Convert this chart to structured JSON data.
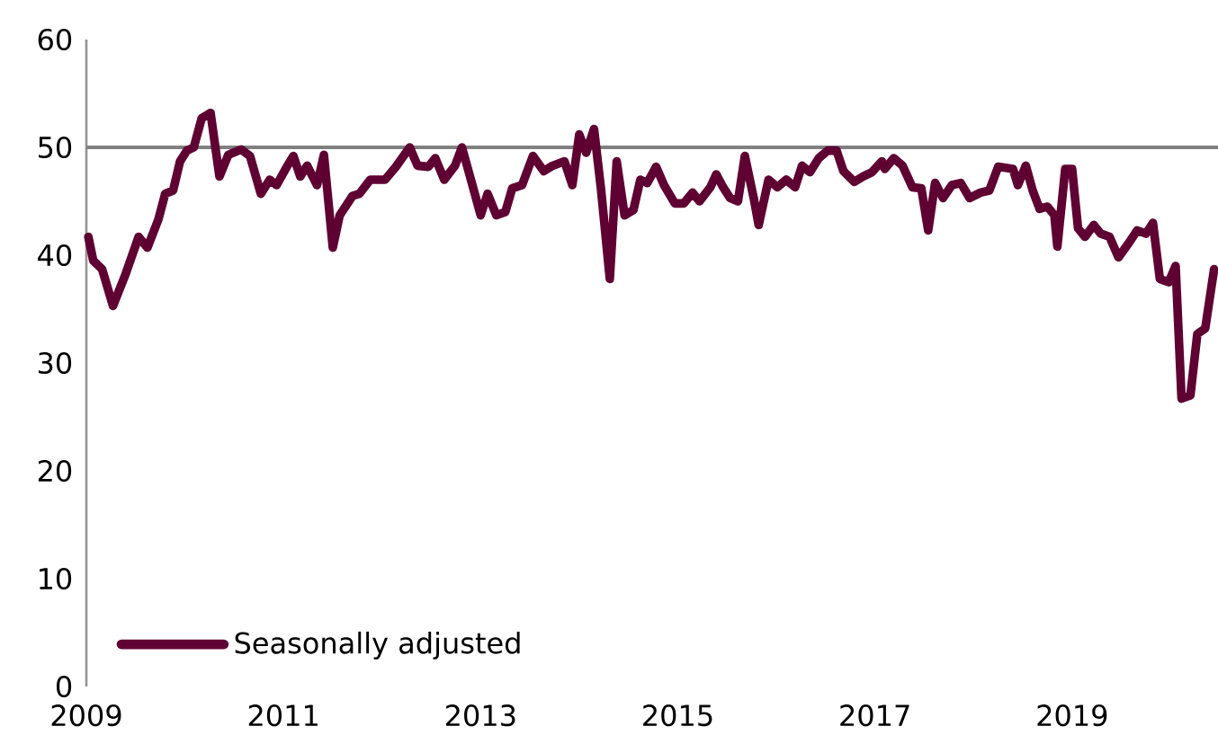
{
  "chart_data": {
    "type": "line",
    "x": [
      2009.02,
      2009.07,
      2009.16,
      2009.27,
      2009.4,
      2009.53,
      2009.62,
      2009.73,
      2009.8,
      2009.88,
      2009.95,
      2010.02,
      2010.09,
      2010.17,
      2010.26,
      2010.35,
      2010.44,
      2010.57,
      2010.66,
      2010.77,
      2010.86,
      2010.93,
      2011.04,
      2011.1,
      2011.17,
      2011.24,
      2011.34,
      2011.41,
      2011.5,
      2011.57,
      2011.7,
      2011.77,
      2011.88,
      2012.03,
      2012.14,
      2012.28,
      2012.36,
      2012.47,
      2012.54,
      2012.63,
      2012.74,
      2012.81,
      2012.91,
      2013.0,
      2013.07,
      2013.16,
      2013.25,
      2013.32,
      2013.42,
      2013.53,
      2013.64,
      2013.73,
      2013.85,
      2013.93,
      2014.0,
      2014.07,
      2014.15,
      2014.22,
      2014.31,
      2014.38,
      2014.46,
      2014.55,
      2014.62,
      2014.69,
      2014.78,
      2014.86,
      2014.97,
      2015.06,
      2015.15,
      2015.22,
      2015.33,
      2015.39,
      2015.46,
      2015.53,
      2015.61,
      2015.68,
      2015.77,
      2015.82,
      2015.92,
      2016.01,
      2016.1,
      2016.19,
      2016.26,
      2016.34,
      2016.43,
      2016.52,
      2016.61,
      2016.68,
      2016.79,
      2016.88,
      2016.97,
      2017.07,
      2017.1,
      2017.19,
      2017.28,
      2017.38,
      2017.47,
      2017.54,
      2017.61,
      2017.69,
      2017.78,
      2017.87,
      2017.96,
      2018.07,
      2018.16,
      2018.25,
      2018.4,
      2018.45,
      2018.53,
      2018.6,
      2018.67,
      2018.75,
      2018.82,
      2018.85,
      2018.93,
      2019.0,
      2019.06,
      2019.13,
      2019.22,
      2019.29,
      2019.38,
      2019.47,
      2019.58,
      2019.66,
      2019.75,
      2019.82,
      2019.89,
      2019.98,
      2020.05,
      2020.11,
      2020.2,
      2020.27,
      2020.35,
      2020.44
    ],
    "series": [
      {
        "name": "Seasonally adjusted",
        "color": "#5f0032",
        "values": [
          41.7,
          39.5,
          38.7,
          35.3,
          38.3,
          41.7,
          40.7,
          43.3,
          45.7,
          46.0,
          48.7,
          49.7,
          50.0,
          52.7,
          53.2,
          47.3,
          49.3,
          49.8,
          49.2,
          45.7,
          47.0,
          46.5,
          48.3,
          49.2,
          47.3,
          48.3,
          46.5,
          49.3,
          40.7,
          43.7,
          45.5,
          45.7,
          47.0,
          47.0,
          48.2,
          50.0,
          48.3,
          48.2,
          49.0,
          47.0,
          48.3,
          50.0,
          46.7,
          43.7,
          45.7,
          43.7,
          44.0,
          46.2,
          46.5,
          49.2,
          47.8,
          48.3,
          48.7,
          46.5,
          51.2,
          49.5,
          51.7,
          46.2,
          37.8,
          48.7,
          43.7,
          44.2,
          47.0,
          46.7,
          48.2,
          46.5,
          44.8,
          44.8,
          45.8,
          45.0,
          46.3,
          47.5,
          46.3,
          45.3,
          45.0,
          49.2,
          45.3,
          42.8,
          47.0,
          46.3,
          47.0,
          46.3,
          48.3,
          47.7,
          49.0,
          49.7,
          49.7,
          47.8,
          46.8,
          47.3,
          47.7,
          48.7,
          48.0,
          49.0,
          48.3,
          46.3,
          46.2,
          42.3,
          46.7,
          45.3,
          46.5,
          46.7,
          45.3,
          45.8,
          46.0,
          48.2,
          48.0,
          46.5,
          48.3,
          46.0,
          44.3,
          44.5,
          43.7,
          40.8,
          48.0,
          48.0,
          42.5,
          41.7,
          42.8,
          42.0,
          41.7,
          39.8,
          41.2,
          42.3,
          42.0,
          43.0,
          37.8,
          37.5,
          39.0,
          26.7,
          27.0,
          32.7,
          33.2,
          38.7
        ]
      }
    ],
    "xlim": [
      2009,
      2020.48
    ],
    "xticks": [
      2009,
      2011,
      2013,
      2015,
      2017,
      2019
    ],
    "ylim": [
      0,
      60
    ],
    "yticks": [
      0,
      10,
      20,
      30,
      40,
      50,
      60
    ],
    "ref_lines": [
      {
        "axis": "y",
        "value": 50,
        "color": "#808080"
      }
    ],
    "legend": "bottom left",
    "grid": false,
    "marker": "none",
    "line_style": "solid"
  }
}
